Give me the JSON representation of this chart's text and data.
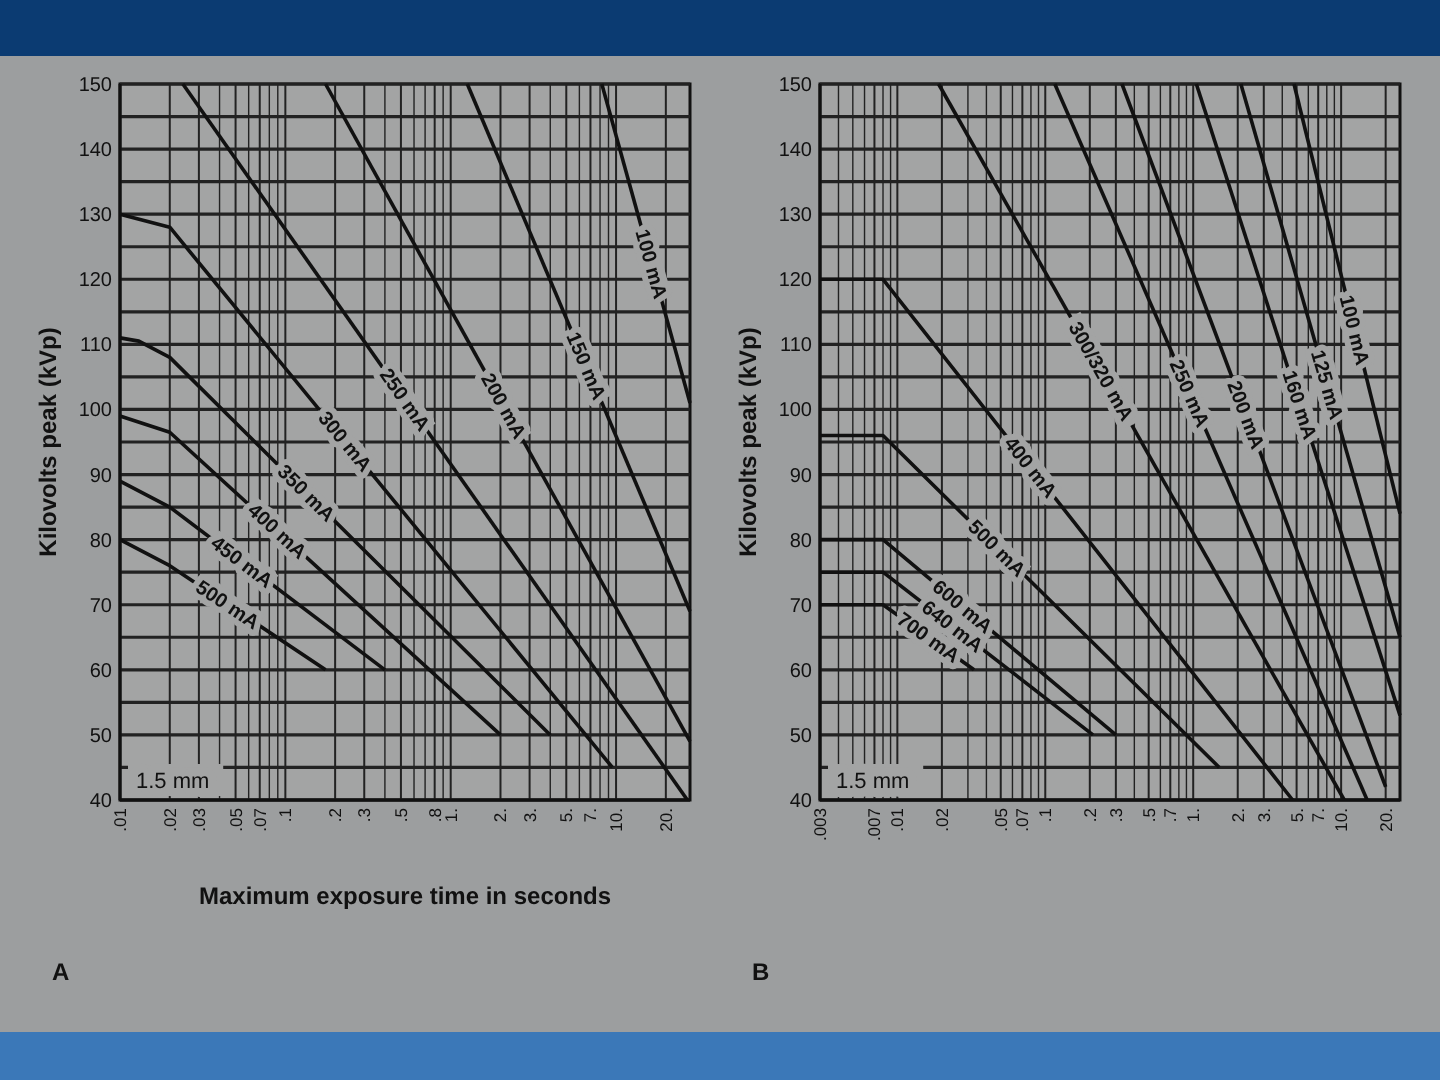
{
  "chart_data": [
    {
      "type": "line",
      "title": "A",
      "xlabel": "Maximum exposure time in seconds",
      "ylabel": "Kilovolts peak (kVp)",
      "log": "x",
      "grid": true,
      "xlim": [
        0.01,
        28
      ],
      "ylim": [
        40,
        150
      ],
      "xticks": [
        {
          "value": 0.01,
          "label": ".01"
        },
        {
          "value": 0.02,
          "label": ".02"
        },
        {
          "value": 0.03,
          "label": ".03"
        },
        {
          "value": 0.04,
          "label": null
        },
        {
          "value": 0.05,
          "label": ".05"
        },
        {
          "value": 0.06,
          "label": null
        },
        {
          "value": 0.07,
          "label": ".07"
        },
        {
          "value": 0.08,
          "label": null
        },
        {
          "value": 0.09,
          "label": null
        },
        {
          "value": 0.1,
          "label": ".1"
        },
        {
          "value": 0.2,
          "label": ".2"
        },
        {
          "value": 0.3,
          "label": ".3"
        },
        {
          "value": 0.4,
          "label": null
        },
        {
          "value": 0.5,
          "label": ".5"
        },
        {
          "value": 0.6,
          "label": null
        },
        {
          "value": 0.7,
          "label": null
        },
        {
          "value": 0.8,
          "label": ".8"
        },
        {
          "value": 0.9,
          "label": null
        },
        {
          "value": 1,
          "label": "1."
        },
        {
          "value": 2,
          "label": "2."
        },
        {
          "value": 3,
          "label": "3."
        },
        {
          "value": 4,
          "label": null
        },
        {
          "value": 5,
          "label": "5."
        },
        {
          "value": 6,
          "label": null
        },
        {
          "value": 7,
          "label": "7."
        },
        {
          "value": 8,
          "label": null
        },
        {
          "value": 9,
          "label": null
        },
        {
          "value": 10,
          "label": "10."
        },
        {
          "value": 20,
          "label": "20."
        }
      ],
      "yticks": [
        40,
        {
          "value": 45,
          "label": null
        },
        50,
        {
          "value": 55,
          "label": null
        },
        60,
        {
          "value": 65,
          "label": null
        },
        70,
        {
          "value": 75,
          "label": null
        },
        80,
        {
          "value": 85,
          "label": null
        },
        90,
        {
          "value": 95,
          "label": null
        },
        100,
        {
          "value": 105,
          "label": null
        },
        110,
        {
          "value": 115,
          "label": null
        },
        120,
        {
          "value": 125,
          "label": null
        },
        130,
        {
          "value": 135,
          "label": null
        },
        140,
        {
          "value": 145,
          "label": null
        },
        150
      ],
      "annotations": [
        "1.5 mm"
      ],
      "series": [
        {
          "name": "500 mA",
          "color": "#111111",
          "x": [
            0.01,
            0.02,
            0.175
          ],
          "values": [
            80,
            76,
            60
          ]
        },
        {
          "name": "450 mA",
          "color": "#111111",
          "x": [
            0.01,
            0.02,
            0.4
          ],
          "values": [
            89,
            85,
            60
          ]
        },
        {
          "name": "400 mA",
          "color": "#111111",
          "x": [
            0.01,
            0.02,
            2
          ],
          "values": [
            99,
            96.5,
            50
          ]
        },
        {
          "name": "350 mA",
          "color": "#111111",
          "x": [
            0.01,
            0.013,
            0.02,
            4
          ],
          "values": [
            111,
            110.5,
            108,
            50
          ]
        },
        {
          "name": "300 mA",
          "color": "#111111",
          "x": [
            0.01,
            0.02,
            9.5
          ],
          "values": [
            130,
            128,
            45
          ]
        },
        {
          "name": "250 mA",
          "color": "#111111",
          "x": [
            0.024,
            27
          ],
          "values": [
            150,
            40
          ]
        },
        {
          "name": "200 mA",
          "color": "#111111",
          "x": [
            0.175,
            28
          ],
          "values": [
            150,
            49
          ]
        },
        {
          "name": "150 mA",
          "color": "#111111",
          "x": [
            1.26,
            28
          ],
          "values": [
            150,
            69
          ]
        },
        {
          "name": "100 mA",
          "color": "#111111",
          "x": [
            8.2,
            28
          ],
          "values": [
            150,
            101
          ]
        }
      ]
    },
    {
      "type": "line",
      "title": "B",
      "ylabel": "Kilovolts peak (kVp)",
      "log": "x",
      "grid": true,
      "xlim": [
        0.003,
        25
      ],
      "ylim": [
        40,
        150
      ],
      "xticks": [
        {
          "value": 0.003,
          "label": ".003"
        },
        {
          "value": 0.004,
          "label": null
        },
        {
          "value": 0.005,
          "label": null
        },
        {
          "value": 0.006,
          "label": null
        },
        {
          "value": 0.007,
          "label": ".007"
        },
        {
          "value": 0.008,
          "label": null
        },
        {
          "value": 0.009,
          "label": null
        },
        {
          "value": 0.01,
          "label": ".01"
        },
        {
          "value": 0.02,
          "label": ".02"
        },
        {
          "value": 0.03,
          "label": null
        },
        {
          "value": 0.04,
          "label": null
        },
        {
          "value": 0.05,
          "label": ".05"
        },
        {
          "value": 0.06,
          "label": null
        },
        {
          "value": 0.07,
          "label": ".07"
        },
        {
          "value": 0.08,
          "label": null
        },
        {
          "value": 0.09,
          "label": null
        },
        {
          "value": 0.1,
          "label": ".1"
        },
        {
          "value": 0.2,
          "label": ".2"
        },
        {
          "value": 0.3,
          "label": ".3"
        },
        {
          "value": 0.4,
          "label": null
        },
        {
          "value": 0.5,
          "label": ".5"
        },
        {
          "value": 0.6,
          "label": null
        },
        {
          "value": 0.7,
          "label": ".7"
        },
        {
          "value": 0.8,
          "label": null
        },
        {
          "value": 0.9,
          "label": null
        },
        {
          "value": 1,
          "label": "1."
        },
        {
          "value": 2,
          "label": "2."
        },
        {
          "value": 3,
          "label": "3."
        },
        {
          "value": 4,
          "label": null
        },
        {
          "value": 5,
          "label": "5."
        },
        {
          "value": 6,
          "label": null
        },
        {
          "value": 7,
          "label": "7."
        },
        {
          "value": 8,
          "label": null
        },
        {
          "value": 9,
          "label": null
        },
        {
          "value": 10,
          "label": "10."
        },
        {
          "value": 20,
          "label": "20."
        }
      ],
      "yticks": [
        40,
        {
          "value": 45,
          "label": null
        },
        50,
        {
          "value": 55,
          "label": null
        },
        60,
        {
          "value": 65,
          "label": null
        },
        70,
        {
          "value": 75,
          "label": null
        },
        80,
        {
          "value": 85,
          "label": null
        },
        90,
        {
          "value": 95,
          "label": null
        },
        100,
        {
          "value": 105,
          "label": null
        },
        110,
        {
          "value": 115,
          "label": null
        },
        120,
        {
          "value": 125,
          "label": null
        },
        130,
        {
          "value": 135,
          "label": null
        },
        140,
        {
          "value": 145,
          "label": null
        },
        150
      ],
      "annotations": [
        "1.5 mm"
      ],
      "series": [
        {
          "name": "700 mA",
          "color": "#111111",
          "x": [
            0.003,
            0.008,
            0.033
          ],
          "values": [
            70,
            70,
            60
          ]
        },
        {
          "name": "640 mA",
          "color": "#111111",
          "x": [
            0.003,
            0.008,
            0.21
          ],
          "values": [
            75,
            75,
            50
          ]
        },
        {
          "name": "600 mA",
          "color": "#111111",
          "x": [
            0.003,
            0.008,
            0.3
          ],
          "values": [
            80,
            80,
            50
          ]
        },
        {
          "name": "500 mA",
          "color": "#111111",
          "x": [
            0.003,
            0.008,
            1.5
          ],
          "values": [
            96,
            96,
            45
          ]
        },
        {
          "name": "400 mA",
          "color": "#111111",
          "x": [
            0.003,
            0.008,
            4.7
          ],
          "values": [
            120,
            120,
            40
          ]
        },
        {
          "name": "300/320 mA",
          "color": "#111111",
          "x": [
            0.019,
            10.5
          ],
          "values": [
            150,
            40
          ]
        },
        {
          "name": "250 mA",
          "color": "#111111",
          "x": [
            0.116,
            15
          ],
          "values": [
            150,
            40
          ]
        },
        {
          "name": "200 mA",
          "color": "#111111",
          "x": [
            0.33,
            20
          ],
          "values": [
            150,
            42
          ]
        },
        {
          "name": "160 mA",
          "color": "#111111",
          "x": [
            1.05,
            25
          ],
          "values": [
            150,
            53
          ]
        },
        {
          "name": "125 mA",
          "color": "#111111",
          "x": [
            2.1,
            25
          ],
          "values": [
            150,
            65
          ]
        },
        {
          "name": "100 mA",
          "color": "#111111",
          "x": [
            4.8,
            25
          ],
          "values": [
            150,
            84
          ]
        }
      ]
    }
  ]
}
